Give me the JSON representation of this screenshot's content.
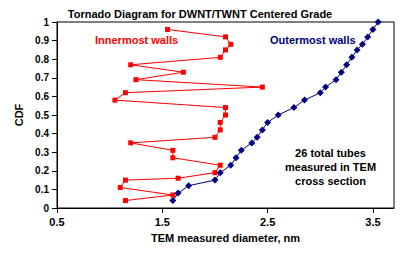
{
  "chart_data": {
    "type": "line",
    "title": "Tornado Diagram for DWNT/TWNT Centered Grade",
    "x_label": "TEM measured diameter, nm",
    "y_label": "CDF",
    "annotation": "26 total tubes\nmeasured in TEM\ncross section",
    "xlim": [
      0.5,
      3.7
    ],
    "xticks": [
      0.5,
      1.5,
      2.5,
      3.5
    ],
    "ylim": [
      0,
      1
    ],
    "yticks": [
      0,
      0.1,
      0.2,
      0.3,
      0.4,
      0.5,
      0.6,
      0.7,
      0.8,
      0.9,
      1
    ],
    "grid": false,
    "series": [
      {
        "name": "Innermost walls",
        "color": "#ff0000",
        "marker": "square",
        "x": [
          1.15,
          1.6,
          1.1,
          1.15,
          1.65,
          2.0,
          2.05,
          1.6,
          1.6,
          1.2,
          2.0,
          2.05,
          2.05,
          2.1,
          2.1,
          1.05,
          1.15,
          2.45,
          1.25,
          1.7,
          1.2,
          2.05,
          2.1,
          2.15,
          2.1,
          1.55
        ],
        "values": [
          0.04,
          0.07,
          0.11,
          0.15,
          0.16,
          0.19,
          0.23,
          0.27,
          0.31,
          0.35,
          0.38,
          0.42,
          0.46,
          0.5,
          0.54,
          0.58,
          0.62,
          0.65,
          0.69,
          0.73,
          0.77,
          0.81,
          0.85,
          0.88,
          0.92,
          0.96
        ]
      },
      {
        "name": "Outermost walls",
        "color": "#000080",
        "marker": "diamond",
        "x": [
          1.6,
          1.65,
          1.75,
          2.0,
          2.05,
          2.15,
          2.2,
          2.25,
          2.35,
          2.4,
          2.45,
          2.5,
          2.6,
          2.75,
          2.85,
          3.0,
          3.05,
          3.15,
          3.2,
          3.25,
          3.3,
          3.35,
          3.4,
          3.45,
          3.5,
          3.55
        ],
        "values": [
          0.04,
          0.08,
          0.12,
          0.15,
          0.19,
          0.23,
          0.27,
          0.31,
          0.35,
          0.38,
          0.42,
          0.46,
          0.5,
          0.54,
          0.58,
          0.62,
          0.65,
          0.69,
          0.73,
          0.77,
          0.81,
          0.85,
          0.88,
          0.92,
          0.96,
          1.0
        ]
      }
    ]
  }
}
